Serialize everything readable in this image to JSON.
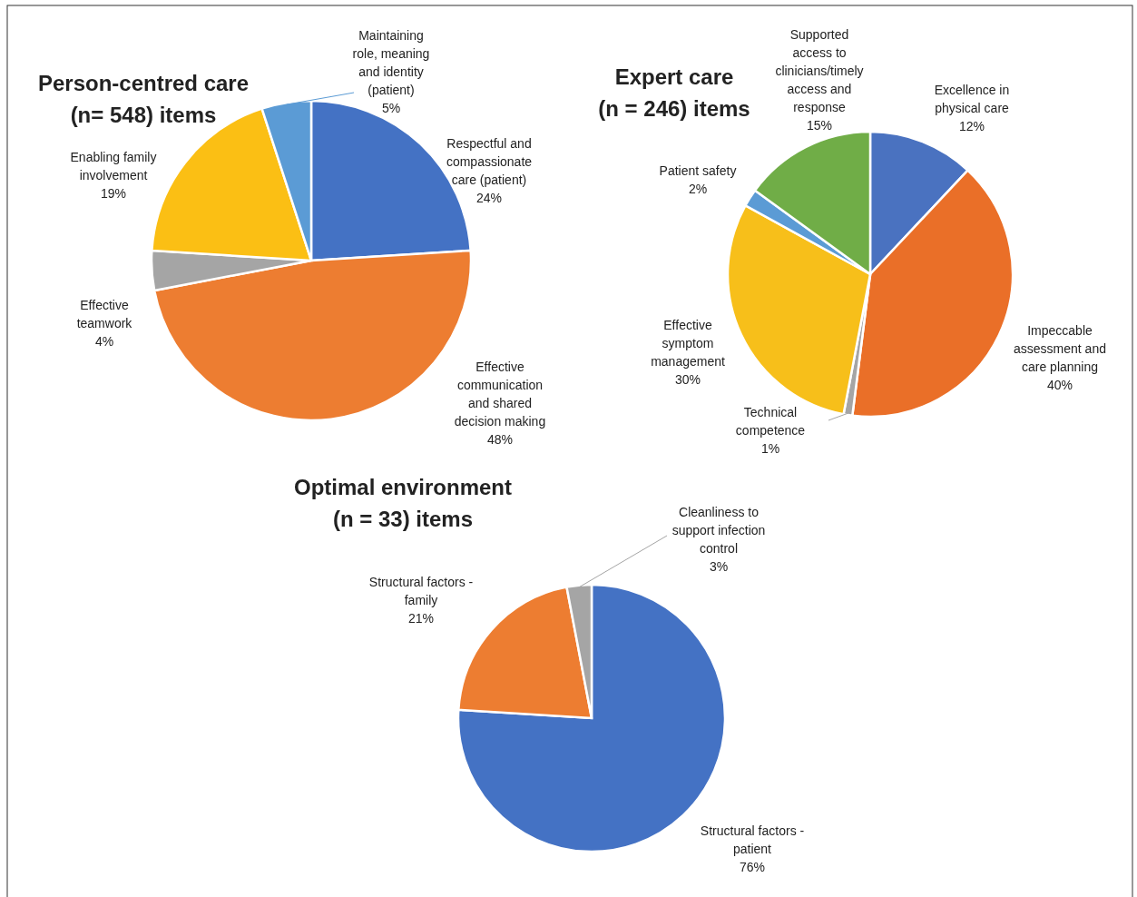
{
  "chart_data": [
    {
      "type": "pie",
      "title": "Person-centred care",
      "subtitle": "(n= 548) items",
      "categories": [
        "Respectful and compassionate care (patient)",
        "Effective communication and shared decision making",
        "Effective teamwork",
        "Enabling family involvement",
        "Maintaining role, meaning and identity (patient)"
      ],
      "values": [
        24,
        48,
        4,
        19,
        5
      ],
      "value_labels": [
        "24%",
        "48%",
        "4%",
        "19%",
        "5%"
      ],
      "colors": [
        "#4472c4",
        "#ed7d31",
        "#a5a5a5",
        "#fbbf14",
        "#5b9bd5"
      ]
    },
    {
      "type": "pie",
      "title": "Expert care",
      "subtitle": "(n = 246) items",
      "categories": [
        "Excellence in physical care",
        "Impeccable assessment and care planning",
        "Technical competence",
        "Effective symptom management",
        "Patient safety",
        "Supported access to clinicians/timely access and response"
      ],
      "values": [
        12,
        40,
        1,
        30,
        2,
        15
      ],
      "value_labels": [
        "12%",
        "40%",
        "1%",
        "30%",
        "2%",
        "15%"
      ],
      "colors": [
        "#4a72c0",
        "#ea6f28",
        "#a5a5a5",
        "#f7bf1a",
        "#5b9bd5",
        "#70ad47"
      ]
    },
    {
      "type": "pie",
      "title": "Optimal environment",
      "subtitle": "(n = 33) items",
      "categories": [
        "Structural factors - patient",
        "Structural factors - family",
        "Cleanliness to support infection control"
      ],
      "values": [
        76,
        21,
        3
      ],
      "value_labels": [
        "76%",
        "21%",
        "3%"
      ],
      "colors": [
        "#4472c4",
        "#ed7d31",
        "#a5a5a5"
      ]
    }
  ]
}
